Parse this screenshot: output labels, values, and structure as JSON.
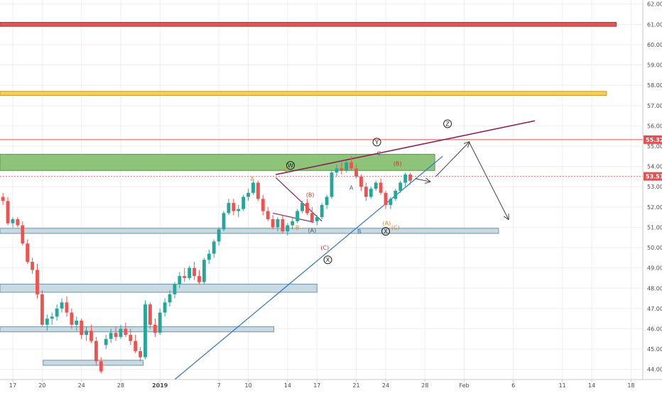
{
  "chart_data": {
    "type": "candlestick",
    "y_axis": {
      "ticks": [
        "44.00",
        "45.00",
        "46.00",
        "47.00",
        "48.00",
        "49.00",
        "50.00",
        "51.00",
        "52.00",
        "53.00",
        "54.00",
        "55.00",
        "56.00",
        "57.00",
        "58.00",
        "59.00",
        "60.00",
        "61.00",
        "62.00"
      ],
      "ylim": [
        43.5,
        62.2
      ],
      "position": "right"
    },
    "x_axis": {
      "ticks": [
        {
          "label": "17",
          "day": -15
        },
        {
          "label": "20",
          "day": -12
        },
        {
          "label": "24",
          "day": -8
        },
        {
          "label": "28",
          "day": -4
        },
        {
          "label": "2019",
          "day": 0
        },
        {
          "label": "7",
          "day": 6
        },
        {
          "label": "10",
          "day": 9
        },
        {
          "label": "14",
          "day": 13
        },
        {
          "label": "17",
          "day": 16
        },
        {
          "label": "21",
          "day": 20
        },
        {
          "label": "24",
          "day": 23
        },
        {
          "label": "28",
          "day": 27
        },
        {
          "label": "Feb",
          "day": 31
        },
        {
          "label": "6",
          "day": 36
        },
        {
          "label": "11",
          "day": 41
        },
        {
          "label": "14",
          "day": 44
        },
        {
          "label": "18",
          "day": 48
        }
      ],
      "xlim": [
        -16.3,
        49.2
      ]
    },
    "price_labels": [
      {
        "text": "55.32",
        "value": 55.32,
        "color": "#e05252"
      },
      {
        "text": "53.51",
        "value": 53.51,
        "color": "#e05252"
      }
    ],
    "grid": true,
    "colors": {
      "up": "#26a69a",
      "down": "#ef5350",
      "trendline_upper": "#8b2252",
      "trendline_lower": "#2e6fbf"
    },
    "zones": [
      {
        "name": "red-resistance-zone",
        "x": [
          -16.3,
          46.5
        ],
        "y": [
          60.9,
          61.1
        ],
        "fill": "#e05555",
        "stroke": "#b03a3a"
      },
      {
        "name": "yellow-resistance-zone",
        "x": [
          -16.3,
          45.5
        ],
        "y": [
          57.5,
          57.7
        ],
        "fill": "#f5cf5a",
        "stroke": "#c79c28"
      },
      {
        "name": "green-supply-zone",
        "x": [
          -16.3,
          28.0
        ],
        "y": [
          53.8,
          54.6
        ],
        "fill": "#8dc47a",
        "stroke": "#5d9a4f"
      },
      {
        "name": "support-zone-51",
        "x": [
          -16.3,
          34.5
        ],
        "y": [
          50.7,
          50.95
        ],
        "fill": "#c9dae3",
        "stroke": "#6d94a8"
      },
      {
        "name": "support-zone-48",
        "x": [
          -16.3,
          16.0
        ],
        "y": [
          47.8,
          48.2
        ],
        "fill": "#c9dae3",
        "stroke": "#6d94a8"
      },
      {
        "name": "support-zone-46",
        "x": [
          -16.3,
          11.6
        ],
        "y": [
          45.85,
          46.1
        ],
        "fill": "#c9dae3",
        "stroke": "#6d94a8"
      },
      {
        "name": "support-zone-44",
        "x": [
          -11.9,
          -1.7
        ],
        "y": [
          44.2,
          44.45
        ],
        "fill": "#c9dae3",
        "stroke": "#6d94a8"
      }
    ],
    "lines": [
      {
        "name": "resistance-line-55-32",
        "x": [
          -16.3,
          49.2
        ],
        "y": [
          55.32,
          55.32
        ],
        "color": "#e05252",
        "width": 1,
        "dash": ""
      },
      {
        "name": "price-line-53-51",
        "x": [
          -16.3,
          49.2
        ],
        "y": [
          53.51,
          53.51
        ],
        "color": "#e05252",
        "width": 0.8,
        "dash": "2,2"
      },
      {
        "name": "upper-trendline",
        "x": [
          11.8,
          38.2
        ],
        "y": [
          53.6,
          56.25
        ],
        "color": "#8b2252",
        "width": 1.6,
        "dash": ""
      },
      {
        "name": "lower-trendline",
        "x": [
          1.5,
          28.8
        ],
        "y": [
          43.5,
          54.5
        ],
        "color": "#2e6fbf",
        "width": 1.2,
        "dash": ""
      },
      {
        "name": "triangle-line-1",
        "x": [
          11.8,
          16.5
        ],
        "y": [
          53.45,
          51.3
        ],
        "color": "#8b2252",
        "width": 1.2,
        "dash": ""
      },
      {
        "name": "triangle-line-2",
        "x": [
          11.5,
          15.7
        ],
        "y": [
          51.7,
          51.25
        ],
        "color": "#8b2252",
        "width": 1.2,
        "dash": ""
      },
      {
        "name": "projection-arrow-1",
        "x": [
          26.0,
          27.5
        ],
        "y": [
          53.4,
          53.25
        ],
        "color": "#444444",
        "width": 1,
        "dash": "",
        "arrow": true
      },
      {
        "name": "projection-arrow-2",
        "x": [
          28.1,
          31.5
        ],
        "y": [
          53.5,
          55.2
        ],
        "color": "#444444",
        "width": 1,
        "dash": "",
        "arrow": true
      },
      {
        "name": "projection-arrow-3",
        "x": [
          31.5,
          35.5
        ],
        "y": [
          55.2,
          51.4
        ],
        "color": "#444444",
        "width": 1,
        "dash": "",
        "arrow": true
      }
    ],
    "wave_labels": [
      {
        "text": "W",
        "x": 13.3,
        "y": 54.05,
        "color": "#222222",
        "circled": true
      },
      {
        "text": "Y",
        "x": 22.1,
        "y": 55.2,
        "color": "#222222",
        "circled": true
      },
      {
        "text": "Z",
        "x": 29.3,
        "y": 56.1,
        "color": "#222222",
        "circled": true
      },
      {
        "text": "X",
        "x": 17.1,
        "y": 49.4,
        "color": "#222222",
        "circled": true
      },
      {
        "text": "X",
        "x": 23.0,
        "y": 50.8,
        "color": "#222222",
        "circled": true
      },
      {
        "text": "A",
        "x": 9.4,
        "y": 53.4,
        "color": "#e08a1c",
        "circled": false
      },
      {
        "text": "C",
        "x": 12.8,
        "y": 53.85,
        "color": "#e08a1c",
        "circled": false
      },
      {
        "text": "B",
        "x": 14.0,
        "y": 51.0,
        "color": "#e08a1c",
        "circled": false
      },
      {
        "text": "(B)",
        "x": 15.3,
        "y": 52.6,
        "color": "#c0392b",
        "circled": false
      },
      {
        "text": "(A)",
        "x": 15.5,
        "y": 50.85,
        "color": "#555555",
        "circled": false
      },
      {
        "text": "(C)",
        "x": 16.8,
        "y": 50.0,
        "color": "#c0392b",
        "circled": false
      },
      {
        "text": "A",
        "x": 19.5,
        "y": 52.95,
        "color": "#2e6fbf",
        "circled": false
      },
      {
        "text": "B",
        "x": 20.3,
        "y": 50.8,
        "color": "#2e6fbf",
        "circled": false
      },
      {
        "text": "C",
        "x": 22.3,
        "y": 54.65,
        "color": "#2e6fbf",
        "circled": false
      },
      {
        "text": "(B)",
        "x": 24.2,
        "y": 54.15,
        "color": "#c0392b",
        "circled": false
      },
      {
        "text": "(A)",
        "x": 23.1,
        "y": 51.2,
        "color": "#e08a1c",
        "circled": false
      },
      {
        "text": "(C)",
        "x": 24.0,
        "y": 51.0,
        "color": "#e08a1c",
        "circled": false
      }
    ],
    "candles": [
      [
        -16,
        52.5,
        52.7,
        52.1,
        52.3
      ],
      [
        -15.5,
        52.3,
        52.5,
        51.1,
        51.2
      ],
      [
        -15,
        51.2,
        51.5,
        51.0,
        51.4
      ],
      [
        -14.5,
        51.4,
        51.5,
        51.0,
        51.1
      ],
      [
        -14,
        51.1,
        51.3,
        50.1,
        50.2
      ],
      [
        -13.5,
        50.2,
        50.4,
        49.2,
        49.3
      ],
      [
        -13,
        49.3,
        49.5,
        48.7,
        48.9
      ],
      [
        -12.5,
        48.9,
        49.2,
        47.5,
        47.7
      ],
      [
        -12,
        47.7,
        47.9,
        46.1,
        46.2
      ],
      [
        -11.5,
        46.2,
        46.7,
        45.9,
        46.5
      ],
      [
        -11,
        46.5,
        46.8,
        46.2,
        46.6
      ],
      [
        -10.5,
        46.6,
        47.2,
        46.4,
        47.0
      ],
      [
        -10,
        47.0,
        47.5,
        46.8,
        47.3
      ],
      [
        -9.5,
        47.3,
        47.6,
        46.6,
        46.8
      ],
      [
        -9,
        46.8,
        47.0,
        46.0,
        46.2
      ],
      [
        -8.5,
        46.2,
        46.6,
        45.9,
        46.4
      ],
      [
        -8,
        46.4,
        46.5,
        45.5,
        45.7
      ],
      [
        -7.5,
        45.7,
        46.1,
        45.4,
        45.9
      ],
      [
        -7,
        45.9,
        46.2,
        45.3,
        45.4
      ],
      [
        -6.5,
        45.4,
        45.6,
        44.2,
        44.4
      ],
      [
        -6,
        44.4,
        44.6,
        43.8,
        43.9
      ],
      [
        -5.5,
        45.2,
        45.7,
        45.0,
        45.5
      ],
      [
        -5,
        45.5,
        46.0,
        45.3,
        45.8
      ],
      [
        -4.5,
        45.8,
        46.1,
        45.4,
        45.6
      ],
      [
        -4,
        45.6,
        46.2,
        45.5,
        46.0
      ],
      [
        -3.5,
        46.0,
        46.3,
        45.6,
        45.7
      ],
      [
        -3,
        45.7,
        46.0,
        45.2,
        45.4
      ],
      [
        -2.5,
        45.4,
        45.7,
        44.8,
        44.9
      ],
      [
        -2,
        44.9,
        45.1,
        44.4,
        44.6
      ],
      [
        -1.5,
        44.6,
        47.4,
        44.5,
        47.2
      ],
      [
        -1,
        47.2,
        47.3,
        46.0,
        46.2
      ],
      [
        -0.5,
        46.2,
        46.5,
        45.6,
        45.8
      ],
      [
        0,
        45.8,
        47.0,
        45.7,
        46.8
      ],
      [
        0.5,
        46.8,
        47.5,
        46.6,
        47.3
      ],
      [
        1,
        47.3,
        47.9,
        47.1,
        47.7
      ],
      [
        1.5,
        47.7,
        48.3,
        47.5,
        48.2
      ],
      [
        2,
        48.2,
        48.8,
        48.0,
        48.6
      ],
      [
        2.5,
        48.6,
        49.0,
        48.3,
        48.5
      ],
      [
        3,
        48.5,
        49.1,
        48.4,
        49.0
      ],
      [
        3.5,
        49.0,
        49.3,
        48.4,
        48.6
      ],
      [
        4,
        48.6,
        48.9,
        48.2,
        48.3
      ],
      [
        4.5,
        48.3,
        49.5,
        48.2,
        49.4
      ],
      [
        5,
        49.4,
        49.9,
        49.2,
        49.7
      ],
      [
        5.5,
        49.7,
        50.4,
        49.5,
        50.3
      ],
      [
        6,
        50.3,
        51.0,
        50.1,
        50.9
      ],
      [
        6.5,
        50.9,
        51.8,
        50.8,
        51.7
      ],
      [
        7,
        51.7,
        52.4,
        51.6,
        52.2
      ],
      [
        7.5,
        52.2,
        52.4,
        51.6,
        51.8
      ],
      [
        8,
        51.8,
        52.1,
        51.5,
        51.9
      ],
      [
        8.5,
        51.9,
        52.6,
        51.8,
        52.5
      ],
      [
        9,
        52.5,
        52.9,
        52.3,
        52.7
      ],
      [
        9.5,
        52.7,
        53.3,
        52.6,
        53.2
      ],
      [
        10,
        53.2,
        53.3,
        52.3,
        52.4
      ],
      [
        10.5,
        52.4,
        52.6,
        51.6,
        51.8
      ],
      [
        11,
        51.8,
        52.0,
        51.3,
        51.4
      ],
      [
        11.5,
        51.4,
        51.6,
        50.9,
        51.0
      ],
      [
        12,
        51.0,
        51.5,
        50.8,
        51.4
      ],
      [
        12.5,
        51.4,
        51.6,
        50.7,
        50.8
      ],
      [
        13,
        50.8,
        51.2,
        50.6,
        51.1
      ],
      [
        13.5,
        51.1,
        51.5,
        50.9,
        51.3
      ],
      [
        14,
        51.3,
        51.9,
        51.2,
        51.8
      ],
      [
        14.5,
        51.8,
        52.3,
        51.7,
        52.2
      ],
      [
        15,
        52.2,
        52.4,
        51.6,
        51.7
      ],
      [
        15.5,
        51.7,
        52.0,
        51.2,
        51.3
      ],
      [
        16,
        51.3,
        51.6,
        51.1,
        51.5
      ],
      [
        16.5,
        51.5,
        52.2,
        51.4,
        52.1
      ],
      [
        17,
        52.1,
        52.6,
        51.9,
        52.5
      ],
      [
        17.5,
        52.5,
        53.8,
        52.4,
        53.7
      ],
      [
        18,
        53.7,
        54.1,
        53.5,
        53.9
      ],
      [
        18.5,
        53.9,
        54.2,
        53.6,
        53.8
      ],
      [
        19,
        53.8,
        54.3,
        53.7,
        54.2
      ],
      [
        19.5,
        54.2,
        54.5,
        53.8,
        53.9
      ],
      [
        20,
        53.9,
        54.1,
        53.4,
        53.5
      ],
      [
        20.5,
        53.5,
        53.6,
        52.8,
        53.0
      ],
      [
        21,
        53.0,
        53.2,
        52.3,
        52.5
      ],
      [
        21.5,
        52.5,
        53.0,
        52.4,
        52.9
      ],
      [
        22,
        52.9,
        53.3,
        52.8,
        53.2
      ],
      [
        22.5,
        53.2,
        53.4,
        52.6,
        52.7
      ],
      [
        23,
        52.7,
        52.8,
        51.9,
        52.1
      ],
      [
        23.5,
        52.1,
        52.5,
        51.9,
        52.4
      ],
      [
        24,
        52.4,
        52.9,
        52.3,
        52.8
      ],
      [
        24.5,
        52.8,
        53.3,
        52.7,
        53.2
      ],
      [
        25,
        53.2,
        53.7,
        53.0,
        53.6
      ],
      [
        25.5,
        53.6,
        53.7,
        53.1,
        53.3
      ]
    ]
  }
}
